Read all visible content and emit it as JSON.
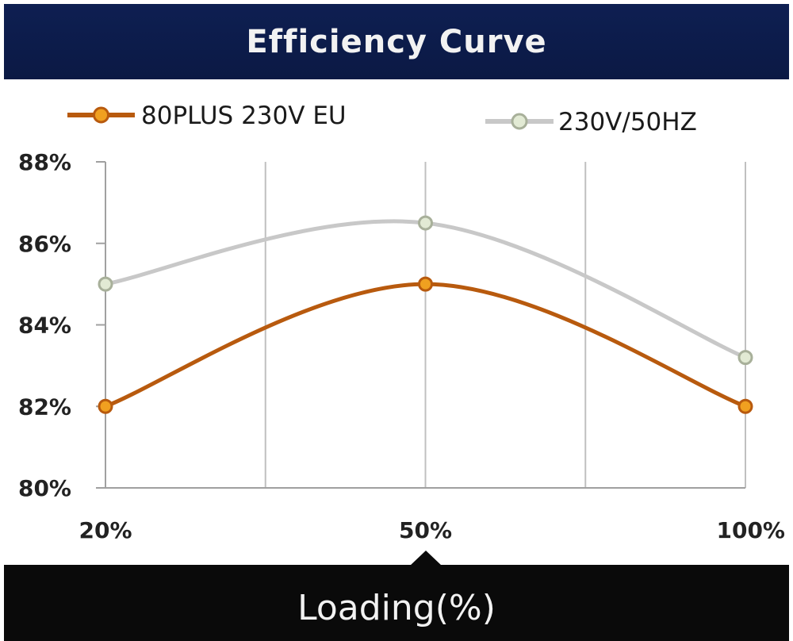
{
  "title": "Efficiency Curve",
  "footer_label": "Loading(%)",
  "colors": {
    "title_bg": "#0b1944",
    "footer_bg": "#0a0a0a",
    "series_1": "#b85a0e",
    "series_1_marker": "#f0a020",
    "series_2": "#c8c8c8",
    "series_2_marker": "#e2ead4",
    "grid": "#c0c0c0"
  },
  "chart_data": {
    "type": "line",
    "title": "Efficiency Curve",
    "xlabel": "Loading(%)",
    "ylabel": "",
    "categories": [
      "20%",
      "50%",
      "100%"
    ],
    "x": [
      20,
      50,
      100
    ],
    "y_ticks": [
      "80%",
      "82%",
      "84%",
      "86%",
      "88%"
    ],
    "ylim": [
      80,
      88
    ],
    "y_unit": "%",
    "grid": "vertical",
    "legend_position": "top",
    "series": [
      {
        "name": "80PLUS 230V EU",
        "values": [
          82,
          85,
          82
        ]
      },
      {
        "name": "230V/50HZ",
        "values": [
          85,
          86.5,
          83.2
        ]
      }
    ]
  }
}
